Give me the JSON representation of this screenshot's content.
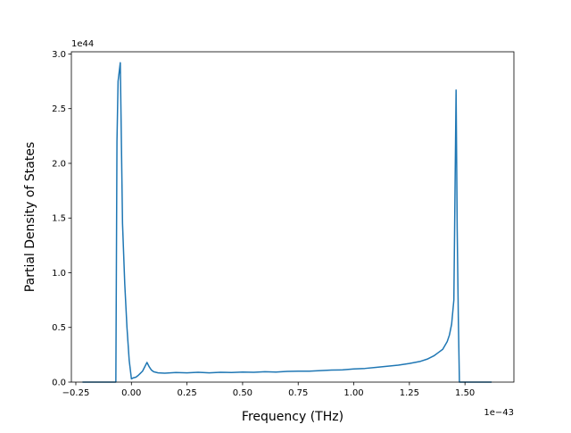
{
  "chart_data": {
    "type": "line",
    "xlabel": "Frequency (THz)",
    "ylabel": "Partial Density of States",
    "x_offset_text": "1e−43",
    "y_offset_text": "1e44",
    "xlim": [
      -0.27,
      1.72
    ],
    "ylim": [
      0.0,
      3.02
    ],
    "x_ticks": [
      -0.25,
      0.0,
      0.25,
      0.5,
      0.75,
      1.0,
      1.25,
      1.5
    ],
    "x_tick_labels": [
      "−0.25",
      "0.00",
      "0.25",
      "0.50",
      "0.75",
      "1.00",
      "1.25",
      "1.50"
    ],
    "y_ticks": [
      0.0,
      0.5,
      1.0,
      1.5,
      2.0,
      2.5,
      3.0
    ],
    "y_tick_labels": [
      "0.0",
      "0.5",
      "1.0",
      "1.5",
      "2.0",
      "2.5",
      "3.0"
    ],
    "grid": false,
    "line_color": "#1f77b4",
    "series": [
      {
        "x": [
          -0.22,
          -0.15,
          -0.08,
          -0.07,
          -0.065,
          -0.06,
          -0.05,
          -0.04,
          -0.03,
          -0.02,
          -0.01,
          0.0,
          0.01,
          0.02,
          0.03,
          0.04,
          0.05,
          0.06,
          0.07,
          0.08,
          0.09,
          0.1,
          0.12,
          0.15,
          0.2,
          0.25,
          0.3,
          0.35,
          0.4,
          0.45,
          0.5,
          0.55,
          0.6,
          0.65,
          0.7,
          0.75,
          0.8,
          0.85,
          0.9,
          0.95,
          1.0,
          1.05,
          1.1,
          1.15,
          1.2,
          1.25,
          1.3,
          1.33,
          1.36,
          1.38,
          1.4,
          1.42,
          1.43,
          1.44,
          1.45,
          1.46,
          1.465,
          1.47,
          1.475,
          1.48,
          1.5,
          1.55,
          1.62
        ],
        "y": [
          0.0,
          0.0,
          0.0,
          0.0,
          2.2,
          2.75,
          2.92,
          1.45,
          0.9,
          0.5,
          0.2,
          0.03,
          0.04,
          0.045,
          0.06,
          0.08,
          0.1,
          0.14,
          0.18,
          0.14,
          0.11,
          0.095,
          0.085,
          0.082,
          0.088,
          0.085,
          0.09,
          0.085,
          0.09,
          0.088,
          0.092,
          0.09,
          0.095,
          0.092,
          0.098,
          0.1,
          0.1,
          0.105,
          0.11,
          0.112,
          0.12,
          0.125,
          0.135,
          0.145,
          0.155,
          0.17,
          0.19,
          0.21,
          0.24,
          0.27,
          0.3,
          0.37,
          0.43,
          0.53,
          0.75,
          2.67,
          1.4,
          0.6,
          0.0,
          0.0,
          0.0,
          0.0,
          0.0
        ]
      }
    ]
  }
}
